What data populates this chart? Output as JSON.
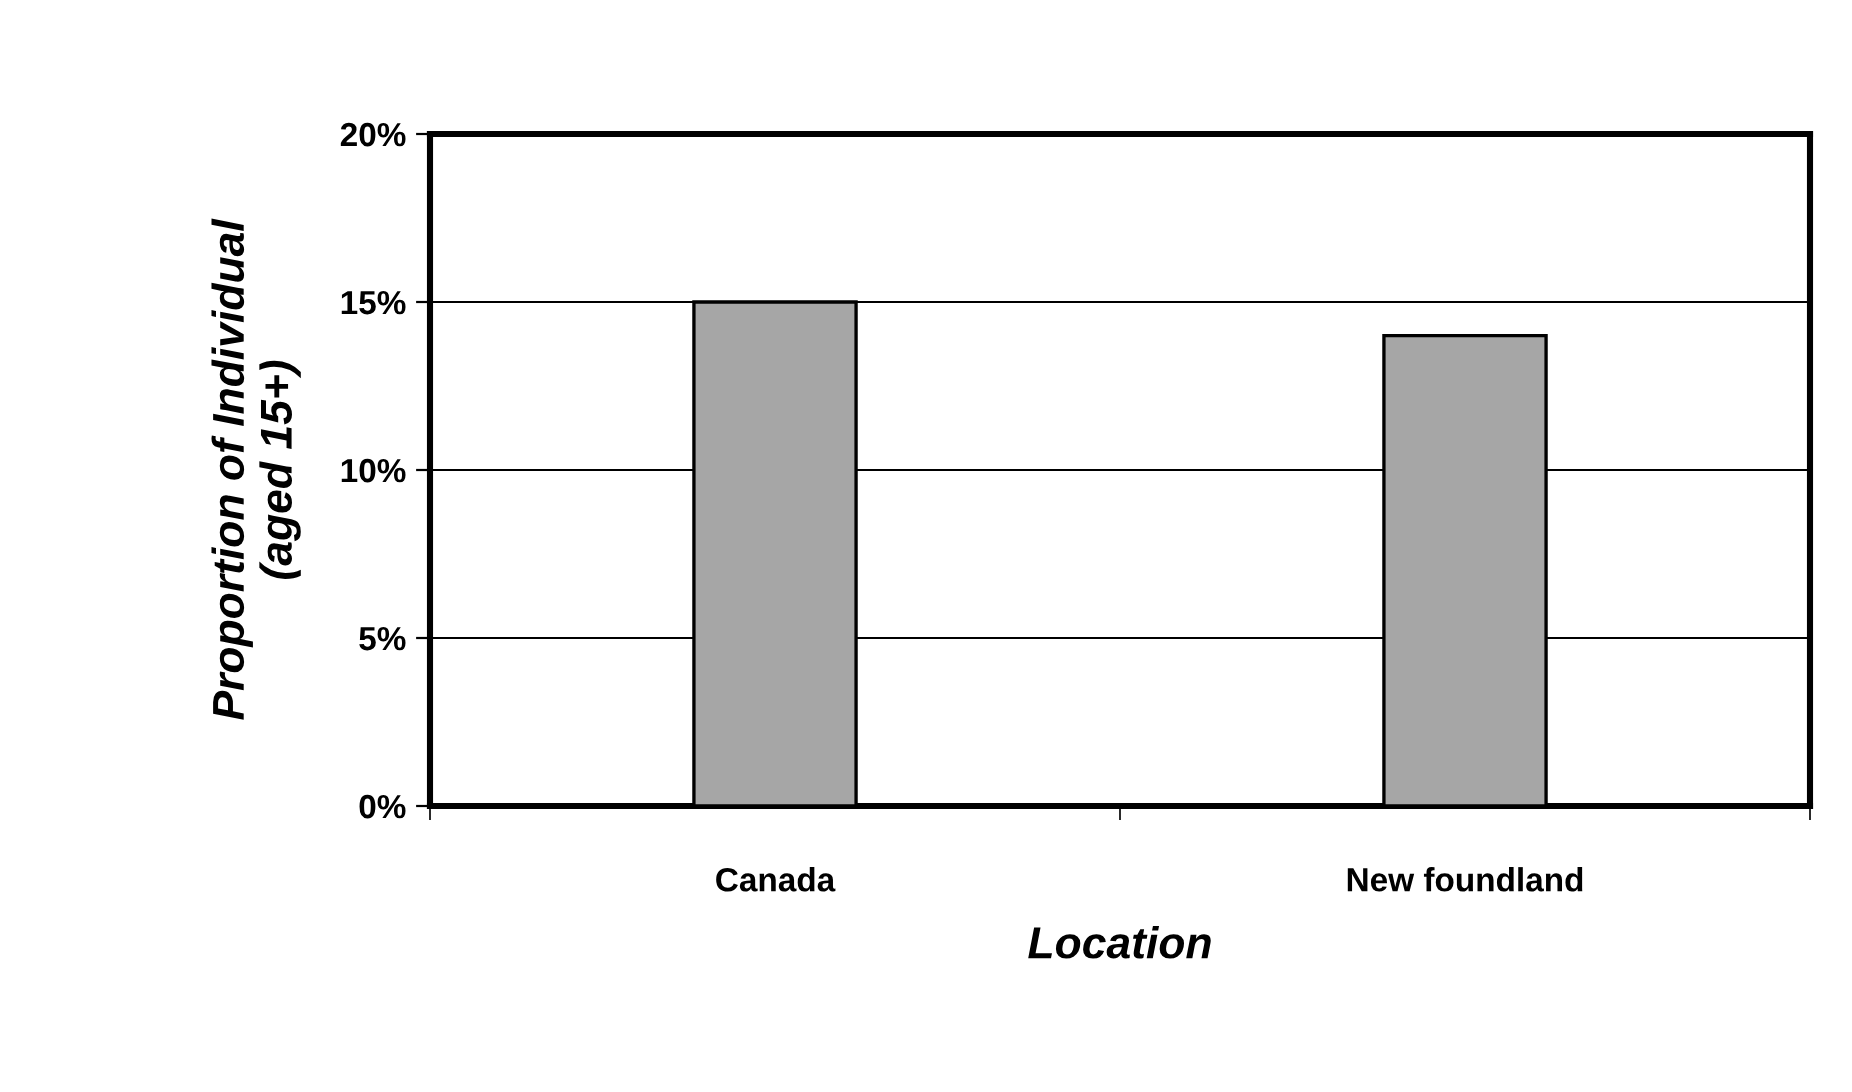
{
  "chart_data": {
    "type": "bar",
    "xlabel": "Location",
    "ylabel": "Proportion of Individual\n(aged 15+)",
    "categories": [
      "Canada",
      "New foundland"
    ],
    "values": [
      0.15,
      0.14
    ],
    "color": "#a6a6a6",
    "ylim": [
      0,
      0.2
    ],
    "yticks": [
      {
        "value": 0,
        "label": "0%"
      },
      {
        "value": 0.05,
        "label": "5%"
      },
      {
        "value": 0.1,
        "label": "10%"
      },
      {
        "value": 0.15,
        "label": "15%"
      },
      {
        "value": 0.2,
        "label": "20%"
      }
    ],
    "grid": "y",
    "legend": false
  }
}
